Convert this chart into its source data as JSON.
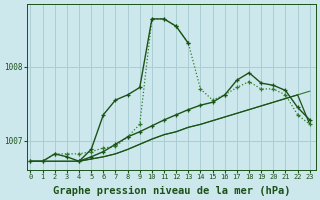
{
  "background_color": "#cde8ec",
  "grid_color": "#aacdd4",
  "line_color_dark": "#1a5218",
  "line_color_mid": "#2d7a2a",
  "xlabel": "Graphe pression niveau de la mer (hPa)",
  "xlabel_fontsize": 7.5,
  "yticks": [
    1007,
    1008
  ],
  "xticks": [
    0,
    1,
    2,
    3,
    4,
    5,
    6,
    7,
    8,
    9,
    10,
    11,
    12,
    13,
    14,
    15,
    16,
    17,
    18,
    19,
    20,
    21,
    22,
    23
  ],
  "xlim": [
    -0.3,
    23.5
  ],
  "ylim": [
    1006.6,
    1008.85
  ],
  "series_dotted_markers": {
    "x": [
      0,
      1,
      2,
      3,
      4,
      5,
      6,
      7,
      8,
      9,
      10,
      11,
      12,
      13,
      14,
      15,
      16,
      17,
      18,
      19,
      20,
      21,
      22,
      23
    ],
    "y": [
      1006.72,
      1006.72,
      1006.82,
      1006.82,
      1006.82,
      1006.85,
      1006.9,
      1006.92,
      1007.05,
      1007.22,
      1008.65,
      1008.65,
      1008.55,
      1008.32,
      1007.7,
      1007.55,
      1007.62,
      1007.72,
      1007.8,
      1007.7,
      1007.7,
      1007.62,
      1007.35,
      1007.22
    ]
  },
  "series_solid_flat": {
    "x": [
      0,
      1,
      2,
      3,
      4,
      5,
      6,
      7,
      8,
      9,
      10,
      11,
      12,
      13,
      14,
      15,
      16,
      17,
      18,
      19,
      20,
      21,
      22,
      23
    ],
    "y": [
      1006.72,
      1006.72,
      1006.72,
      1006.72,
      1006.72,
      1006.75,
      1006.78,
      1006.82,
      1006.88,
      1006.95,
      1007.02,
      1007.08,
      1007.12,
      1007.18,
      1007.22,
      1007.27,
      1007.32,
      1007.37,
      1007.42,
      1007.47,
      1007.52,
      1007.57,
      1007.62,
      1007.22
    ]
  },
  "series_solid_markers_steep": {
    "x": [
      0,
      1,
      2,
      3,
      4,
      5,
      6,
      7,
      8,
      9,
      10,
      11,
      12,
      13
    ],
    "y": [
      1006.72,
      1006.72,
      1006.82,
      1006.78,
      1006.72,
      1006.88,
      1007.35,
      1007.55,
      1007.62,
      1007.72,
      1008.65,
      1008.65,
      1008.55,
      1008.32
    ]
  },
  "series_solid_mid_peak": {
    "x": [
      4,
      5,
      6,
      7,
      8,
      9,
      10,
      11,
      12,
      13,
      14,
      15,
      16,
      17,
      18,
      19,
      20,
      21,
      22,
      23
    ],
    "y": [
      1006.72,
      1006.78,
      1006.85,
      1006.95,
      1007.05,
      1007.12,
      1007.2,
      1007.28,
      1007.35,
      1007.42,
      1007.48,
      1007.52,
      1007.62,
      1007.82,
      1007.92,
      1007.78,
      1007.75,
      1007.68,
      1007.45,
      1007.28
    ]
  },
  "series_solid_no_markers_rising": {
    "x": [
      0,
      1,
      2,
      3,
      4,
      5,
      6,
      7,
      8,
      9,
      10,
      11,
      12,
      13,
      14,
      15,
      16,
      17,
      18,
      19,
      20,
      21,
      22,
      23
    ],
    "y": [
      1006.72,
      1006.72,
      1006.72,
      1006.72,
      1006.72,
      1006.75,
      1006.78,
      1006.82,
      1006.88,
      1006.95,
      1007.02,
      1007.08,
      1007.12,
      1007.18,
      1007.22,
      1007.27,
      1007.32,
      1007.37,
      1007.42,
      1007.47,
      1007.52,
      1007.57,
      1007.62,
      1007.67
    ]
  }
}
